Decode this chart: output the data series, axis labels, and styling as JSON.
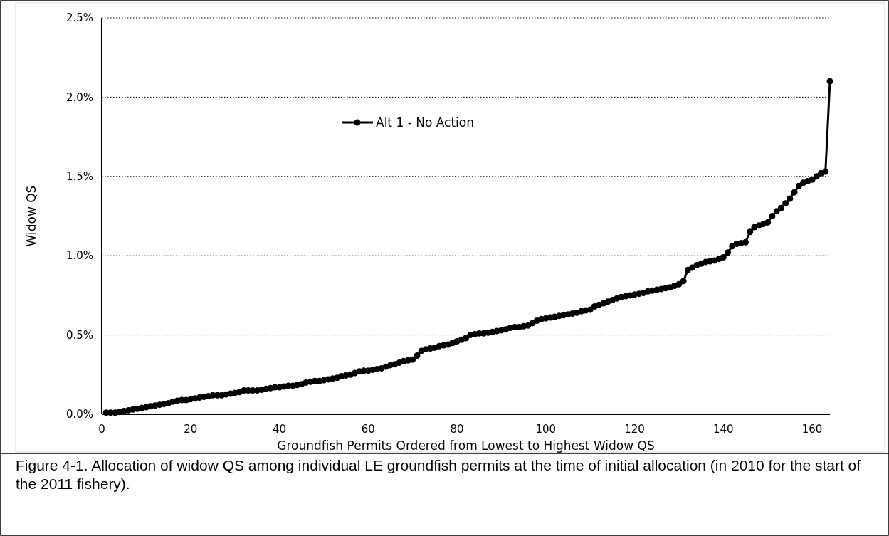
{
  "chart_data": {
    "type": "line",
    "xlabel": "Groundfish Permits Ordered from Lowest to Highest Widow QS",
    "ylabel": "Widow QS",
    "annotations": [
      "Figure 4-1.  Allocation of widow QS among individual LE groundfish permits at the time of initial allocation (in 2010 for the start of the 2011 fishery)."
    ],
    "x": [
      1,
      2,
      3,
      4,
      5,
      6,
      7,
      8,
      9,
      10,
      11,
      12,
      13,
      14,
      15,
      16,
      17,
      18,
      19,
      20,
      21,
      22,
      23,
      24,
      25,
      26,
      27,
      28,
      29,
      30,
      31,
      32,
      33,
      34,
      35,
      36,
      37,
      38,
      39,
      40,
      41,
      42,
      43,
      44,
      45,
      46,
      47,
      48,
      49,
      50,
      51,
      52,
      53,
      54,
      55,
      56,
      57,
      58,
      59,
      60,
      61,
      62,
      63,
      64,
      65,
      66,
      67,
      68,
      69,
      70,
      71,
      72,
      73,
      74,
      75,
      76,
      77,
      78,
      79,
      80,
      81,
      82,
      83,
      84,
      85,
      86,
      87,
      88,
      89,
      90,
      91,
      92,
      93,
      94,
      95,
      96,
      97,
      98,
      99,
      100,
      101,
      102,
      103,
      104,
      105,
      106,
      107,
      108,
      109,
      110,
      111,
      112,
      113,
      114,
      115,
      116,
      117,
      118,
      119,
      120,
      121,
      122,
      123,
      124,
      125,
      126,
      127,
      128,
      129,
      130,
      131,
      132,
      133,
      134,
      135,
      136,
      137,
      138,
      139,
      140,
      141,
      142,
      143,
      144,
      145,
      146,
      147,
      148,
      149,
      150,
      151,
      152,
      153,
      154,
      155,
      156,
      157,
      158,
      159,
      160,
      161,
      162,
      163,
      164
    ],
    "series": [
      {
        "name": "Alt 1 - No Action",
        "color": "#000000",
        "values": [
          0.01,
          0.01,
          0.01,
          0.015,
          0.02,
          0.025,
          0.03,
          0.035,
          0.04,
          0.045,
          0.05,
          0.055,
          0.06,
          0.065,
          0.07,
          0.08,
          0.085,
          0.09,
          0.09,
          0.095,
          0.1,
          0.105,
          0.11,
          0.115,
          0.12,
          0.12,
          0.12,
          0.125,
          0.13,
          0.135,
          0.14,
          0.15,
          0.15,
          0.15,
          0.15,
          0.155,
          0.16,
          0.165,
          0.17,
          0.17,
          0.175,
          0.18,
          0.18,
          0.185,
          0.19,
          0.2,
          0.205,
          0.21,
          0.21,
          0.215,
          0.22,
          0.225,
          0.23,
          0.24,
          0.245,
          0.25,
          0.26,
          0.27,
          0.275,
          0.275,
          0.28,
          0.285,
          0.29,
          0.3,
          0.31,
          0.315,
          0.325,
          0.335,
          0.34,
          0.345,
          0.37,
          0.4,
          0.41,
          0.415,
          0.42,
          0.43,
          0.435,
          0.44,
          0.45,
          0.46,
          0.47,
          0.48,
          0.5,
          0.505,
          0.51,
          0.51,
          0.515,
          0.52,
          0.525,
          0.53,
          0.535,
          0.545,
          0.55,
          0.55,
          0.555,
          0.56,
          0.575,
          0.59,
          0.6,
          0.605,
          0.61,
          0.615,
          0.62,
          0.625,
          0.63,
          0.635,
          0.64,
          0.65,
          0.655,
          0.66,
          0.68,
          0.69,
          0.7,
          0.71,
          0.72,
          0.73,
          0.74,
          0.745,
          0.75,
          0.755,
          0.76,
          0.765,
          0.775,
          0.78,
          0.785,
          0.79,
          0.795,
          0.8,
          0.81,
          0.82,
          0.84,
          0.91,
          0.925,
          0.94,
          0.95,
          0.96,
          0.965,
          0.97,
          0.98,
          0.99,
          1.02,
          1.06,
          1.075,
          1.08,
          1.085,
          1.15,
          1.18,
          1.19,
          1.2,
          1.21,
          1.25,
          1.28,
          1.3,
          1.33,
          1.36,
          1.4,
          1.44,
          1.46,
          1.47,
          1.48,
          1.5,
          1.52,
          1.53,
          2.1
        ]
      }
    ],
    "xlim": [
      0,
      164
    ],
    "xticks": [
      0,
      20,
      40,
      60,
      80,
      100,
      120,
      140,
      160
    ],
    "ylim": [
      0,
      2.5
    ],
    "yticks": [
      {
        "value": 0,
        "label": "0.0%"
      },
      {
        "value": 0.5,
        "label": "0.5%"
      },
      {
        "value": 1,
        "label": "1.0%"
      },
      {
        "value": 1.5,
        "label": "1.5%"
      },
      {
        "value": 2,
        "label": "2.0%"
      },
      {
        "value": 2.5,
        "label": "2.5%"
      }
    ],
    "grid": "y",
    "legend": "top",
    "marker": "circle",
    "line_style": "solid"
  }
}
